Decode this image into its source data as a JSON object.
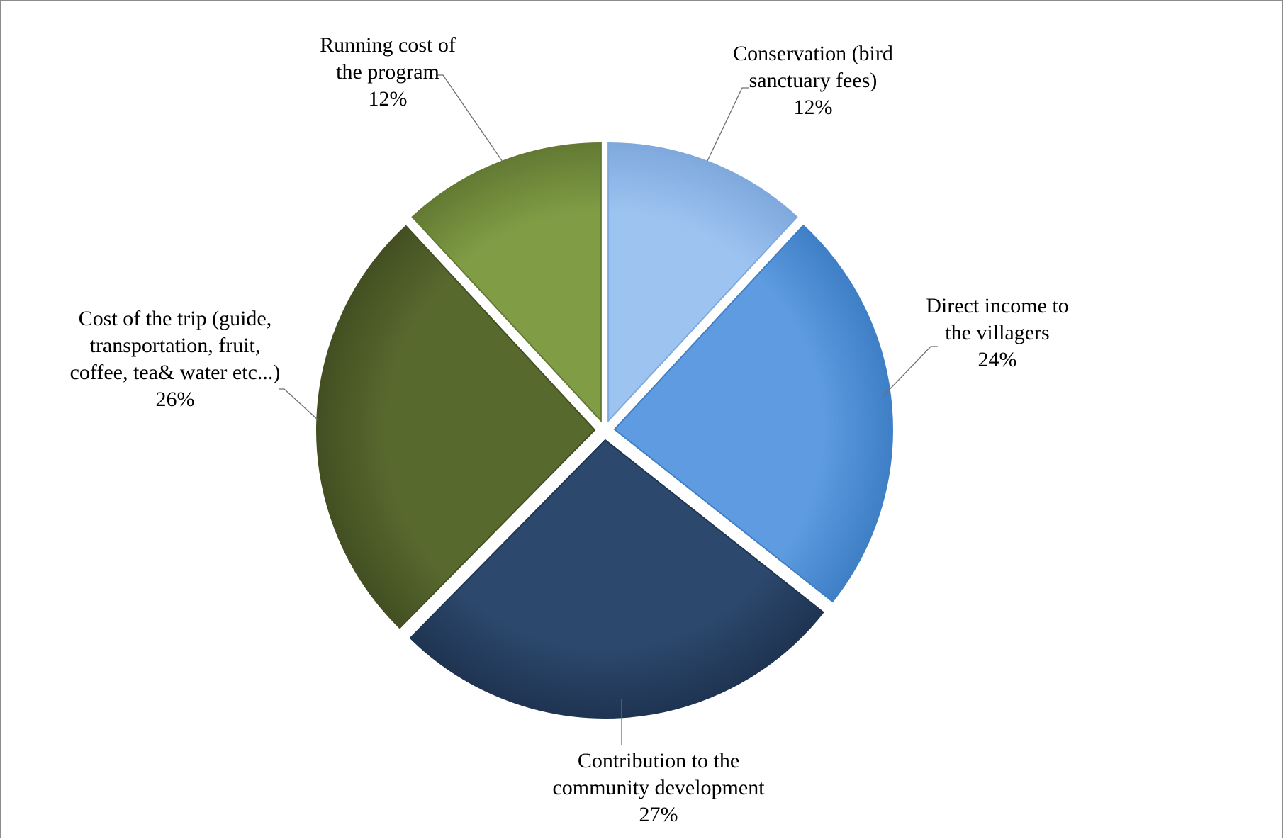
{
  "chart_data": {
    "type": "pie",
    "start_angle_deg": 0,
    "direction": "clockwise",
    "exploded": true,
    "slices": [
      {
        "label_lines": [
          "Conservation (bird",
          "sanctuary fees)"
        ],
        "value": 12,
        "value_label": "12%",
        "color": "#9dc3f0",
        "stroke": "#7fa9dd"
      },
      {
        "label_lines": [
          "Direct income to",
          "the villagers"
        ],
        "value": 24,
        "value_label": "24%",
        "color": "#5e9be0",
        "stroke": "#3f7fc6"
      },
      {
        "label_lines": [
          "Contribution to the",
          "community development"
        ],
        "value": 27,
        "value_label": "27%",
        "color": "#2c486c",
        "stroke": "#1f3452"
      },
      {
        "label_lines": [
          "Cost of the trip (guide,",
          "transportation, fruit,",
          "coffee, tea& water etc...)"
        ],
        "value": 26,
        "value_label": "26%",
        "color": "#58692e",
        "stroke": "#434f22"
      },
      {
        "label_lines": [
          "Running cost of",
          "the program"
        ],
        "value": 12,
        "value_label": "12%",
        "color": "#809d45",
        "stroke": "#637a33"
      }
    ]
  }
}
